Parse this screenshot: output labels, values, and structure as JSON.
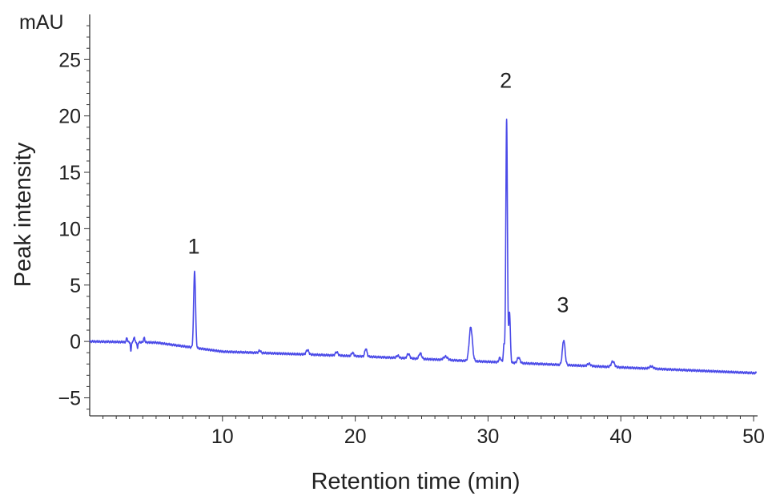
{
  "chart_data": {
    "type": "line",
    "title": "",
    "xlabel": "Retention time (min)",
    "ylabel": "Peak intensity",
    "y_unit": "mAU",
    "xlim": [
      0,
      50.3
    ],
    "ylim": [
      -6.6,
      29
    ],
    "x_ticks": [
      10,
      20,
      30,
      40,
      50
    ],
    "y_ticks": [
      -5,
      0,
      5,
      10,
      15,
      20,
      25
    ],
    "grid": false,
    "legend": "none",
    "line_color": "#4a4ae8",
    "series": [
      {
        "peaks": [
          {
            "x": 2.8,
            "y": 0.4,
            "w": 0.04
          },
          {
            "x": 3.1,
            "y": -0.9,
            "w": 0.03
          },
          {
            "x": 3.35,
            "y": 0.5,
            "w": 0.04
          },
          {
            "x": 3.6,
            "y": -0.6,
            "w": 0.03
          },
          {
            "x": 4.1,
            "y": 0.4,
            "w": 0.05
          },
          {
            "x": 7.9,
            "y": 6.8,
            "w": 0.07
          },
          {
            "x": 12.8,
            "y": 0.2,
            "w": 0.08
          },
          {
            "x": 16.4,
            "y": 0.4,
            "w": 0.1
          },
          {
            "x": 18.6,
            "y": 0.3,
            "w": 0.1
          },
          {
            "x": 19.8,
            "y": 0.3,
            "w": 0.08
          },
          {
            "x": 20.8,
            "y": 0.7,
            "w": 0.08
          },
          {
            "x": 23.2,
            "y": 0.2,
            "w": 0.1
          },
          {
            "x": 24.0,
            "y": 0.4,
            "w": 0.1
          },
          {
            "x": 24.9,
            "y": 0.5,
            "w": 0.1
          },
          {
            "x": 26.8,
            "y": 0.3,
            "w": 0.15
          },
          {
            "x": 28.7,
            "y": 3.0,
            "w": 0.12
          },
          {
            "x": 30.9,
            "y": 0.4,
            "w": 0.08
          },
          {
            "x": 31.2,
            "y": 1.5,
            "w": 0.05
          },
          {
            "x": 31.4,
            "y": 21.5,
            "w": 0.06
          },
          {
            "x": 31.62,
            "y": 4.5,
            "w": 0.06
          },
          {
            "x": 32.3,
            "y": 0.5,
            "w": 0.1
          },
          {
            "x": 35.7,
            "y": 2.2,
            "w": 0.1
          },
          {
            "x": 37.6,
            "y": 0.2,
            "w": 0.12
          },
          {
            "x": 39.4,
            "y": 0.5,
            "w": 0.12
          },
          {
            "x": 42.3,
            "y": 0.2,
            "w": 0.15
          }
        ],
        "baseline": [
          [
            0,
            0
          ],
          [
            5,
            -0.1
          ],
          [
            10,
            -0.9
          ],
          [
            20,
            -1.3
          ],
          [
            30,
            -1.8
          ],
          [
            40,
            -2.3
          ],
          [
            50,
            -2.8
          ]
        ]
      }
    ],
    "annotations": [
      {
        "text": "1",
        "x": 7.9,
        "y": 7.8
      },
      {
        "text": "2",
        "x": 31.4,
        "y": 22.5
      },
      {
        "text": "3",
        "x": 35.7,
        "y": 2.6
      }
    ]
  }
}
